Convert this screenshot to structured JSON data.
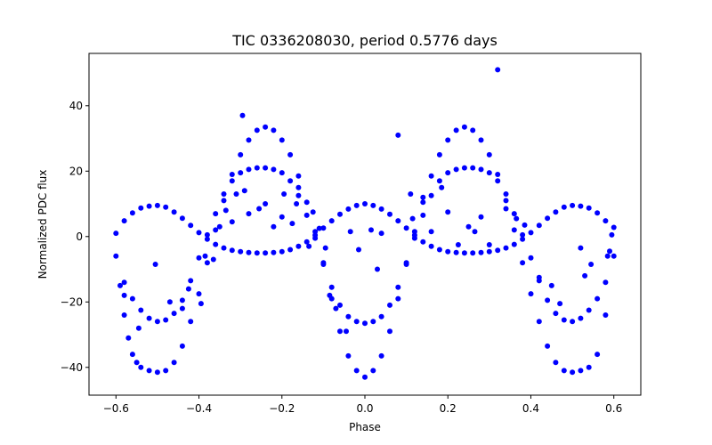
{
  "chart_data": {
    "type": "scatter",
    "title": "TIC 0336208030, period 0.5776 days",
    "xlabel": "Phase",
    "ylabel": "Normalized PDC flux",
    "xlim": [
      -0.665,
      0.665
    ],
    "ylim": [
      -48.5,
      56
    ],
    "xticks": [
      -0.6,
      -0.4,
      -0.2,
      0.0,
      0.2,
      0.4,
      0.6
    ],
    "xtick_labels": [
      "−0.6",
      "−0.4",
      "−0.2",
      "0.0",
      "0.2",
      "0.4",
      "0.6"
    ],
    "yticks": [
      -40,
      -20,
      0,
      20,
      40
    ],
    "ytick_labels": [
      "−40",
      "−20",
      "0",
      "20",
      "40"
    ],
    "grid": false,
    "legend": "none",
    "marker_color": "#0000ff",
    "series": [
      {
        "points": [
          [
            -0.6,
            1.0
          ],
          [
            -0.58,
            4.8
          ],
          [
            -0.56,
            7.2
          ],
          [
            -0.54,
            8.7
          ],
          [
            -0.52,
            9.3
          ],
          [
            -0.5,
            9.5
          ],
          [
            -0.48,
            9.0
          ],
          [
            -0.46,
            7.5
          ],
          [
            -0.44,
            5.6
          ],
          [
            -0.42,
            3.4
          ],
          [
            -0.4,
            1.2
          ],
          [
            -0.38,
            -0.8
          ],
          [
            -0.36,
            -2.4
          ],
          [
            -0.34,
            -3.5
          ],
          [
            -0.32,
            -4.2
          ],
          [
            -0.3,
            -4.6
          ],
          [
            -0.28,
            -4.9
          ],
          [
            -0.26,
            -5.0
          ],
          [
            -0.24,
            -5.0
          ],
          [
            -0.22,
            -4.9
          ],
          [
            -0.2,
            -4.6
          ],
          [
            -0.18,
            -4.0
          ],
          [
            -0.16,
            -3.0
          ],
          [
            -0.14,
            -1.6
          ],
          [
            -0.12,
            0.4
          ],
          [
            -0.1,
            2.6
          ],
          [
            -0.08,
            4.8
          ],
          [
            -0.06,
            6.8
          ],
          [
            -0.04,
            8.4
          ],
          [
            -0.02,
            9.5
          ],
          [
            0.0,
            10.0
          ],
          [
            0.02,
            9.5
          ],
          [
            0.04,
            8.4
          ],
          [
            0.06,
            6.8
          ],
          [
            0.08,
            4.8
          ],
          [
            0.1,
            2.6
          ],
          [
            0.12,
            0.4
          ],
          [
            0.14,
            -1.6
          ],
          [
            0.16,
            -3.0
          ],
          [
            0.18,
            -4.0
          ],
          [
            0.2,
            -4.6
          ],
          [
            0.22,
            -4.9
          ],
          [
            0.24,
            -5.0
          ],
          [
            0.26,
            -5.0
          ],
          [
            0.28,
            -4.9
          ],
          [
            0.3,
            -4.6
          ],
          [
            0.32,
            -4.2
          ],
          [
            0.34,
            -3.5
          ],
          [
            0.36,
            -2.4
          ],
          [
            0.38,
            -0.8
          ],
          [
            0.4,
            1.2
          ],
          [
            0.42,
            3.4
          ],
          [
            0.44,
            5.6
          ],
          [
            0.46,
            7.5
          ],
          [
            0.48,
            9.0
          ],
          [
            0.5,
            9.5
          ],
          [
            0.52,
            9.3
          ],
          [
            0.54,
            8.7
          ],
          [
            0.56,
            7.2
          ],
          [
            0.58,
            4.8
          ],
          [
            0.6,
            2.8
          ]
        ]
      },
      {
        "points": [
          [
            -0.6,
            -6.0
          ],
          [
            -0.59,
            -15.0
          ],
          [
            -0.58,
            -24.0
          ],
          [
            -0.57,
            -31.0
          ],
          [
            -0.56,
            -36.0
          ],
          [
            -0.55,
            -38.5
          ],
          [
            -0.54,
            -40.0
          ],
          [
            -0.52,
            -41.0
          ],
          [
            -0.5,
            -41.5
          ],
          [
            -0.48,
            -41.0
          ],
          [
            -0.46,
            -38.5
          ],
          [
            -0.44,
            -33.5
          ],
          [
            -0.42,
            -26.0
          ],
          [
            -0.4,
            -17.5
          ],
          [
            -0.38,
            -8.0
          ],
          [
            -0.36,
            2.0
          ],
          [
            -0.34,
            11.0
          ],
          [
            -0.32,
            19.0
          ],
          [
            -0.3,
            25.0
          ],
          [
            -0.28,
            29.5
          ],
          [
            -0.26,
            32.5
          ],
          [
            -0.24,
            33.5
          ],
          [
            -0.22,
            32.5
          ],
          [
            -0.2,
            29.5
          ],
          [
            -0.18,
            25.0
          ],
          [
            -0.16,
            18.5
          ],
          [
            -0.14,
            10.5
          ],
          [
            -0.12,
            1.5
          ],
          [
            -0.1,
            -8.5
          ],
          [
            -0.08,
            -19.0
          ],
          [
            -0.06,
            -29.0
          ],
          [
            -0.04,
            -36.5
          ],
          [
            -0.02,
            -41.0
          ],
          [
            0.0,
            -43.0
          ],
          [
            0.02,
            -41.0
          ],
          [
            0.04,
            -36.5
          ],
          [
            0.06,
            -29.0
          ],
          [
            0.08,
            -19.0
          ],
          [
            0.1,
            -8.5
          ],
          [
            0.12,
            1.5
          ],
          [
            0.14,
            10.5
          ],
          [
            0.16,
            18.5
          ],
          [
            0.18,
            25.0
          ],
          [
            0.2,
            29.5
          ],
          [
            0.22,
            32.5
          ],
          [
            0.24,
            33.5
          ],
          [
            0.26,
            32.5
          ],
          [
            0.28,
            29.5
          ],
          [
            0.3,
            25.0
          ],
          [
            0.32,
            19.0
          ],
          [
            0.34,
            11.0
          ],
          [
            0.36,
            2.0
          ],
          [
            0.38,
            -8.0
          ],
          [
            0.4,
            -17.5
          ],
          [
            0.42,
            -26.0
          ],
          [
            0.44,
            -33.5
          ],
          [
            0.46,
            -38.5
          ],
          [
            0.48,
            -41.0
          ],
          [
            0.5,
            -41.5
          ],
          [
            0.52,
            -41.0
          ],
          [
            0.54,
            -40.0
          ],
          [
            0.56,
            -36.0
          ],
          [
            0.58,
            -24.0
          ],
          [
            0.6,
            -6.0
          ]
        ]
      },
      {
        "points": [
          [
            -0.58,
            -14.0
          ],
          [
            -0.56,
            -19.0
          ],
          [
            -0.54,
            -22.5
          ],
          [
            -0.52,
            -25.0
          ],
          [
            -0.5,
            -26.0
          ],
          [
            -0.48,
            -25.5
          ],
          [
            -0.46,
            -23.5
          ],
          [
            -0.44,
            -19.5
          ],
          [
            -0.42,
            -13.5
          ],
          [
            -0.4,
            -6.5
          ],
          [
            -0.38,
            0.5
          ],
          [
            -0.36,
            7.0
          ],
          [
            -0.34,
            13.0
          ],
          [
            -0.32,
            17.0
          ],
          [
            -0.3,
            19.5
          ],
          [
            -0.28,
            20.5
          ],
          [
            -0.26,
            21.0
          ],
          [
            -0.24,
            21.0
          ],
          [
            -0.22,
            20.5
          ],
          [
            -0.2,
            19.5
          ],
          [
            -0.18,
            17.0
          ],
          [
            -0.16,
            12.5
          ],
          [
            -0.14,
            6.5
          ],
          [
            -0.12,
            -0.5
          ],
          [
            -0.1,
            -8.0
          ],
          [
            -0.08,
            -15.5
          ],
          [
            -0.06,
            -21.0
          ],
          [
            -0.04,
            -24.5
          ],
          [
            -0.02,
            -26.0
          ],
          [
            0.0,
            -26.5
          ],
          [
            0.02,
            -26.0
          ],
          [
            0.04,
            -24.5
          ],
          [
            0.06,
            -21.0
          ],
          [
            0.08,
            -15.5
          ],
          [
            0.1,
            -8.0
          ],
          [
            0.12,
            -0.5
          ],
          [
            0.14,
            6.5
          ],
          [
            0.16,
            12.5
          ],
          [
            0.18,
            17.0
          ],
          [
            0.2,
            19.5
          ],
          [
            0.22,
            20.5
          ],
          [
            0.24,
            21.0
          ],
          [
            0.26,
            21.0
          ],
          [
            0.28,
            20.5
          ],
          [
            0.3,
            19.5
          ],
          [
            0.32,
            17.0
          ],
          [
            0.34,
            13.0
          ],
          [
            0.36,
            7.0
          ],
          [
            0.38,
            0.5
          ],
          [
            0.4,
            -6.5
          ],
          [
            0.42,
            -13.5
          ],
          [
            0.44,
            -19.5
          ],
          [
            0.46,
            -23.5
          ],
          [
            0.48,
            -25.5
          ],
          [
            0.5,
            -26.0
          ],
          [
            0.52,
            -25.0
          ],
          [
            0.54,
            -22.5
          ],
          [
            0.56,
            -19.0
          ],
          [
            0.58,
            -14.0
          ]
        ]
      },
      {
        "points": [
          [
            -0.295,
            37.0
          ],
          [
            -0.58,
            -18.0
          ],
          [
            -0.545,
            -28.0
          ],
          [
            -0.505,
            -8.5
          ],
          [
            -0.47,
            -20.0
          ],
          [
            -0.44,
            -22.0
          ],
          [
            -0.425,
            -16.0
          ],
          [
            -0.395,
            -20.5
          ],
          [
            -0.385,
            -6.0
          ],
          [
            -0.365,
            -7.0
          ],
          [
            -0.35,
            3.0
          ],
          [
            -0.335,
            8.0
          ],
          [
            -0.32,
            4.5
          ],
          [
            -0.31,
            13.0
          ],
          [
            -0.29,
            14.0
          ],
          [
            -0.28,
            7.0
          ],
          [
            -0.255,
            8.5
          ],
          [
            -0.24,
            10.0
          ],
          [
            -0.22,
            3.0
          ],
          [
            -0.2,
            6.0
          ],
          [
            -0.195,
            13.0
          ],
          [
            -0.175,
            4.0
          ],
          [
            -0.165,
            10.0
          ],
          [
            -0.16,
            15.0
          ],
          [
            -0.135,
            -3.0
          ],
          [
            -0.125,
            7.5
          ],
          [
            -0.11,
            2.5
          ],
          [
            -0.095,
            -3.5
          ],
          [
            -0.085,
            -18.0
          ],
          [
            -0.07,
            -22.0
          ],
          [
            -0.045,
            -29.0
          ],
          [
            -0.035,
            1.5
          ],
          [
            -0.015,
            -4.0
          ],
          [
            0.015,
            2.0
          ],
          [
            0.03,
            -10.0
          ],
          [
            0.04,
            1.0
          ],
          [
            0.08,
            31.0
          ],
          [
            0.11,
            13.0
          ],
          [
            0.115,
            5.5
          ],
          [
            0.14,
            12.0
          ],
          [
            0.16,
            1.5
          ],
          [
            0.185,
            15.0
          ],
          [
            0.2,
            7.5
          ],
          [
            0.225,
            -2.5
          ],
          [
            0.25,
            3.0
          ],
          [
            0.265,
            1.5
          ],
          [
            0.28,
            6.0
          ],
          [
            0.3,
            -2.5
          ],
          [
            0.32,
            51.0
          ],
          [
            0.34,
            8.5
          ],
          [
            0.365,
            5.5
          ],
          [
            0.385,
            3.5
          ],
          [
            0.42,
            -12.5
          ],
          [
            0.45,
            -15.0
          ],
          [
            0.47,
            -20.5
          ],
          [
            0.52,
            -3.5
          ],
          [
            0.53,
            -12.0
          ],
          [
            0.545,
            -8.5
          ],
          [
            0.585,
            -6.0
          ],
          [
            0.59,
            -4.5
          ],
          [
            0.595,
            0.5
          ]
        ]
      }
    ]
  }
}
